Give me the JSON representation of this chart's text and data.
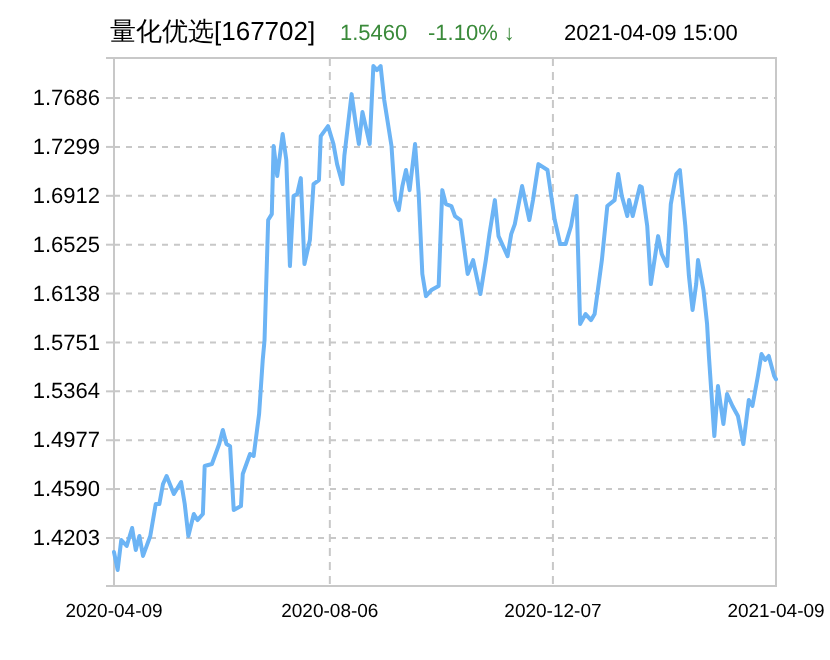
{
  "chart_data": {
    "type": "line",
    "title": "量化优选[167702]",
    "annotations": [
      "1.5460",
      "-1.10% ↓",
      "2021-04-09 15:00"
    ],
    "x": [
      "2020-04-09",
      "2020-04-11",
      "2020-04-13",
      "2020-04-16",
      "2020-04-19",
      "2020-04-21",
      "2020-04-23",
      "2020-04-25",
      "2020-04-29",
      "2020-05-02",
      "2020-05-04",
      "2020-05-06",
      "2020-05-08",
      "2020-05-12",
      "2020-05-16",
      "2020-05-18",
      "2020-05-20",
      "2020-05-23",
      "2020-05-25",
      "2020-05-28",
      "2020-05-29",
      "2020-06-02",
      "2020-06-06",
      "2020-06-08",
      "2020-06-10",
      "2020-06-12",
      "2020-06-14",
      "2020-06-18",
      "2020-06-19",
      "2020-06-23",
      "2020-06-25",
      "2020-06-28",
      "2020-06-30",
      "2020-07-01",
      "2020-07-03",
      "2020-07-05",
      "2020-07-06",
      "2020-07-08",
      "2020-07-11",
      "2020-07-13",
      "2020-07-15",
      "2020-07-17",
      "2020-07-19",
      "2020-07-21",
      "2020-07-23",
      "2020-07-26",
      "2020-07-28",
      "2020-07-31",
      "2020-08-01",
      "2020-08-05",
      "2020-08-08",
      "2020-08-10",
      "2020-08-13",
      "2020-08-14",
      "2020-08-18",
      "2020-08-20",
      "2020-08-22",
      "2020-08-24",
      "2020-08-25",
      "2020-08-28",
      "2020-08-30",
      "2020-09-01",
      "2020-09-03",
      "2020-09-05",
      "2020-09-09",
      "2020-09-11",
      "2020-09-13",
      "2020-09-15",
      "2020-09-17",
      "2020-09-19",
      "2020-09-22",
      "2020-09-24",
      "2020-09-26",
      "2020-09-28",
      "2020-10-01",
      "2020-10-05",
      "2020-10-07",
      "2020-10-09",
      "2020-10-12",
      "2020-10-14",
      "2020-10-17",
      "2020-10-21",
      "2020-10-24",
      "2020-10-28",
      "2020-10-31",
      "2020-11-02",
      "2020-11-05",
      "2020-11-07",
      "2020-11-12",
      "2020-11-14",
      "2020-11-16",
      "2020-11-20",
      "2020-11-24",
      "2020-11-26",
      "2020-11-29",
      "2020-12-04",
      "2020-12-08",
      "2020-12-11",
      "2020-12-14",
      "2020-12-17",
      "2020-12-20",
      "2020-12-22",
      "2020-12-25",
      "2020-12-28",
      "2020-12-30",
      "2021-01-03",
      "2021-01-06",
      "2021-01-10",
      "2021-01-12",
      "2021-01-14",
      "2021-01-17",
      "2021-01-18",
      "2021-01-20",
      "2021-01-24",
      "2021-01-25",
      "2021-01-28",
      "2021-01-30",
      "2021-02-03",
      "2021-02-05",
      "2021-02-08",
      "2021-02-10",
      "2021-02-13",
      "2021-02-15",
      "2021-02-18",
      "2021-02-20",
      "2021-02-22",
      "2021-02-24",
      "2021-02-25",
      "2021-02-28",
      "2021-03-02",
      "2021-03-03",
      "2021-03-06",
      "2021-03-08",
      "2021-03-11",
      "2021-03-13",
      "2021-03-16",
      "2021-03-19",
      "2021-03-22",
      "2021-03-25",
      "2021-03-27",
      "2021-03-30",
      "2021-04-01",
      "2021-04-03",
      "2021-04-05",
      "2021-04-08",
      "2021-04-09"
    ],
    "series": [
      {
        "color": "#6cb4f5",
        "values": [
          1.4092,
          1.395,
          1.4187,
          1.414,
          1.4282,
          1.4108,
          1.4219,
          1.4061,
          1.4219,
          1.4472,
          1.4472,
          1.463,
          1.4694,
          1.4551,
          1.4646,
          1.4472,
          1.4219,
          1.4393,
          1.4345,
          1.4393,
          1.4773,
          1.4789,
          1.4947,
          1.5058,
          1.4947,
          1.493,
          1.4425,
          1.4456,
          1.471,
          1.4868,
          1.4852,
          1.5184,
          1.5612,
          1.577,
          1.672,
          1.6767,
          1.7306,
          1.7068,
          1.7401,
          1.7195,
          1.6356,
          1.691,
          1.6926,
          1.7052,
          1.6372,
          1.6562,
          1.7005,
          1.7037,
          1.7385,
          1.7464,
          1.7322,
          1.7163,
          1.7005,
          1.7227,
          1.7717,
          1.7511,
          1.7322,
          1.7575,
          1.7511,
          1.7322,
          1.7939,
          1.7907,
          1.7939,
          1.767,
          1.7306,
          1.6878,
          1.6799,
          1.6989,
          1.7116,
          1.6957,
          1.7322,
          1.6926,
          1.6293,
          1.6118,
          1.6166,
          1.6198,
          1.6957,
          1.6847,
          1.6831,
          1.6752,
          1.672,
          1.6293,
          1.6403,
          1.6134,
          1.6403,
          1.6609,
          1.6878,
          1.6593,
          1.6435,
          1.6609,
          1.6688,
          1.6989,
          1.672,
          1.6878,
          1.7163,
          1.7116,
          1.672,
          1.653,
          1.653,
          1.6673,
          1.691,
          1.5897,
          1.5976,
          1.5928,
          1.5976,
          1.6403,
          1.6831,
          1.6878,
          1.7084,
          1.691,
          1.6752,
          1.6878,
          1.6752,
          1.6989,
          1.698,
          1.6673,
          1.6213,
          1.6593,
          1.6451,
          1.6356,
          1.6847,
          1.7084,
          1.7116,
          1.6673,
          1.6277,
          1.6008,
          1.6213,
          1.6403,
          1.6166,
          1.5897,
          1.5644,
          1.501,
          1.5406,
          1.5105,
          1.5343,
          1.5248,
          1.5169,
          1.4947,
          1.5295,
          1.5248,
          1.5485,
          1.5659,
          1.5612,
          1.5644,
          1.5485,
          1.546
        ]
      }
    ],
    "xlim": [
      "2020-04-09",
      "2021-04-09"
    ],
    "xticks": [
      "2020-04-09",
      "2020-08-06",
      "2020-12-07",
      "2021-04-09"
    ],
    "ylim": [
      1.3823,
      1.8003
    ],
    "yticks": [
      1.4203,
      {
        "value": 1.459,
        "label": "1.4590"
      },
      1.4977,
      1.5364,
      1.5751,
      1.6138,
      1.6525,
      1.6912,
      1.7299,
      1.7686
    ],
    "grid": true,
    "line_style": "solid"
  }
}
